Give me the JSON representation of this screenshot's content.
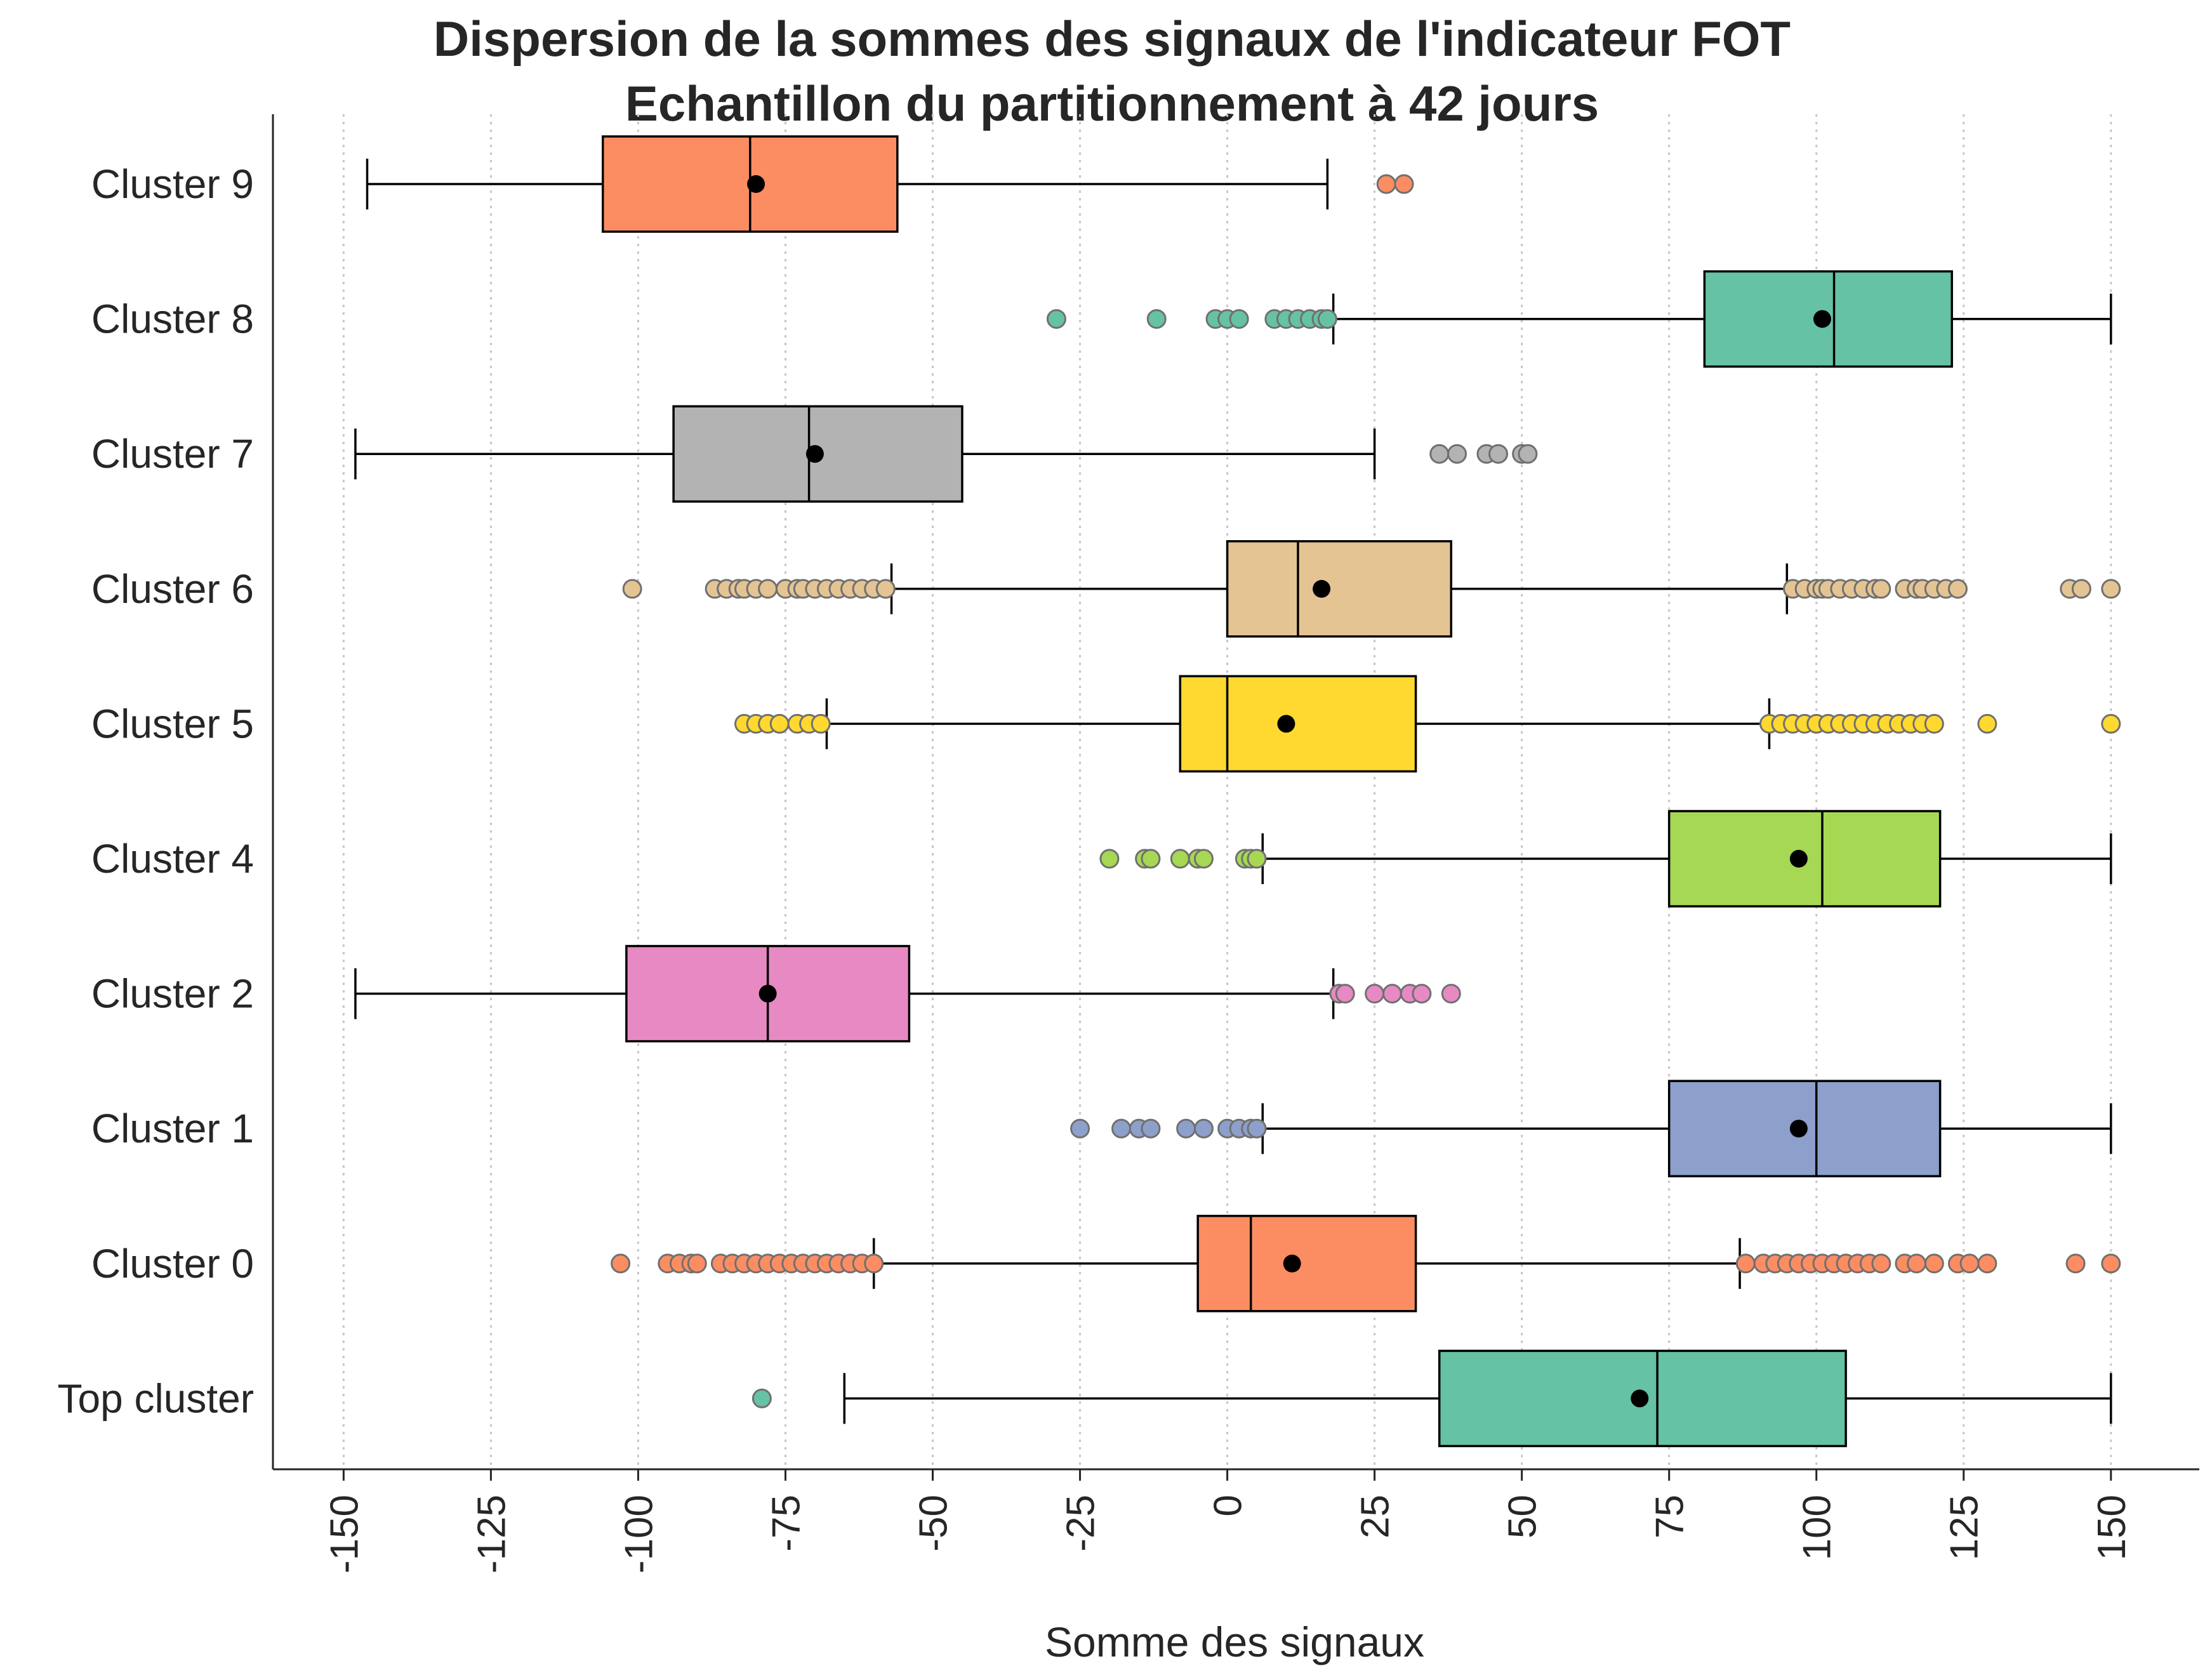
{
  "chart_data": {
    "type": "boxplot",
    "orientation": "horizontal",
    "title_lines": [
      "Dispersion de la sommes des signaux de l'indicateur FOT",
      "Echantillon du partitionnement à 42 jours"
    ],
    "xlabel": "Somme des signaux",
    "ylabel": "",
    "xlim": [
      -162,
      165
    ],
    "x_ticks": [
      -150,
      -125,
      -100,
      -75,
      -50,
      -25,
      0,
      25,
      50,
      75,
      100,
      125,
      150
    ],
    "x_tick_labels": [
      "-150",
      "-125",
      "-100",
      "-75",
      "-50",
      "-25",
      "0",
      "25",
      "50",
      "75",
      "100",
      "125",
      "150"
    ],
    "x_grid": true,
    "y_grid": false,
    "legend": "none",
    "categories": [
      "Cluster 9",
      "Cluster 8",
      "Cluster 7",
      "Cluster 6",
      "Cluster 5",
      "Cluster 4",
      "Cluster 2",
      "Cluster 1",
      "Cluster 0",
      "Top cluster"
    ],
    "series": [
      {
        "label": "Cluster 9",
        "color": "#fc8d62",
        "whisker_low": -146,
        "q1": -106,
        "median": -81,
        "q3": -56,
        "whisker_high": 17,
        "mean": -80,
        "outliers": [
          27,
          30
        ]
      },
      {
        "label": "Cluster 8",
        "color": "#66c2a5",
        "whisker_low": 18,
        "q1": 81,
        "median": 103,
        "q3": 123,
        "whisker_high": 150,
        "mean": 101,
        "outliers": [
          -29,
          -12,
          -2,
          0,
          2,
          8,
          10,
          12,
          14,
          16,
          17
        ]
      },
      {
        "label": "Cluster 7",
        "color": "#b3b3b3",
        "whisker_low": -148,
        "q1": -94,
        "median": -71,
        "q3": -45,
        "whisker_high": 25,
        "mean": -70,
        "outliers": [
          36,
          39,
          44,
          46,
          50,
          51
        ]
      },
      {
        "label": "Cluster 6",
        "color": "#e5c494",
        "whisker_low": -57,
        "q1": 0,
        "median": 12,
        "q3": 38,
        "whisker_high": 95,
        "mean": 16,
        "outliers": [
          -101,
          -87,
          -85,
          -83,
          -82,
          -80,
          -78,
          -75,
          -73,
          -72,
          -70,
          -68,
          -66,
          -64,
          -62,
          -60,
          -58,
          96,
          98,
          100,
          101,
          102,
          104,
          106,
          108,
          110,
          111,
          115,
          117,
          118,
          120,
          122,
          124,
          143,
          145,
          150
        ]
      },
      {
        "label": "Cluster 5",
        "color": "#ffd92f",
        "whisker_low": -68,
        "q1": -8,
        "median": 0,
        "q3": 32,
        "whisker_high": 92,
        "mean": 10,
        "outliers": [
          -82,
          -80,
          -78,
          -76,
          -73,
          -71,
          -69,
          92,
          94,
          96,
          98,
          100,
          102,
          104,
          106,
          108,
          110,
          112,
          114,
          116,
          118,
          120,
          129,
          150
        ]
      },
      {
        "label": "Cluster 4",
        "color": "#a6d854",
        "whisker_low": 6,
        "q1": 75,
        "median": 101,
        "q3": 121,
        "whisker_high": 150,
        "mean": 97,
        "outliers": [
          -20,
          -14,
          -13,
          -8,
          -5,
          -4,
          3,
          4,
          5
        ]
      },
      {
        "label": "Cluster 2",
        "color": "#e78ac3",
        "whisker_low": -148,
        "q1": -102,
        "median": -78,
        "q3": -54,
        "whisker_high": 18,
        "mean": -78,
        "outliers": [
          19,
          20,
          25,
          28,
          31,
          33,
          38
        ]
      },
      {
        "label": "Cluster 1",
        "color": "#8da0cb",
        "whisker_low": 6,
        "q1": 75,
        "median": 100,
        "q3": 121,
        "whisker_high": 150,
        "mean": 97,
        "outliers": [
          -25,
          -18,
          -15,
          -13,
          -7,
          -4,
          0,
          2,
          4,
          5
        ]
      },
      {
        "label": "Cluster 0",
        "color": "#fc8d62",
        "whisker_low": -60,
        "q1": -5,
        "median": 4,
        "q3": 32,
        "whisker_high": 87,
        "mean": 11,
        "outliers": [
          -103,
          -95,
          -93,
          -91,
          -90,
          -86,
          -84,
          -82,
          -80,
          -78,
          -76,
          -74,
          -72,
          -70,
          -68,
          -66,
          -64,
          -62,
          -60,
          88,
          91,
          93,
          95,
          97,
          99,
          101,
          103,
          105,
          107,
          109,
          111,
          115,
          117,
          120,
          124,
          126,
          129,
          144,
          150
        ]
      },
      {
        "label": "Top cluster",
        "color": "#66c2a5",
        "whisker_low": -65,
        "q1": 36,
        "median": 73,
        "q3": 105,
        "whisker_high": 150,
        "mean": 70,
        "outliers": [
          -79
        ]
      }
    ]
  }
}
